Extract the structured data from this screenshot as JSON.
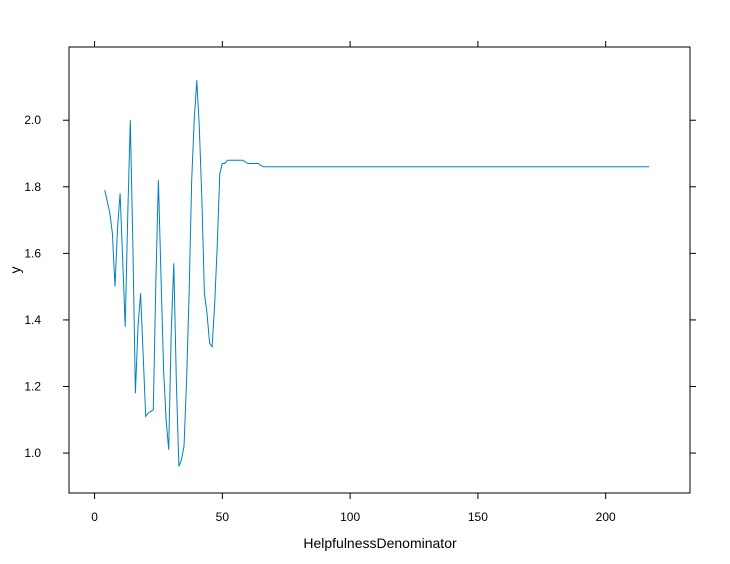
{
  "chart_data": {
    "type": "line",
    "title": "",
    "xlabel": "HelpfulnessDenominator",
    "ylabel": "y",
    "xlim": [
      -10,
      233
    ],
    "ylim": [
      0.88,
      2.22
    ],
    "x_ticks": [
      0,
      50,
      100,
      150,
      200
    ],
    "y_ticks": [
      1.0,
      1.2,
      1.4,
      1.6,
      1.8,
      2.0
    ],
    "x_tick_labels": [
      "0",
      "50",
      "100",
      "150",
      "200"
    ],
    "y_tick_labels": [
      "1.0",
      "1.2",
      "1.4",
      "1.6",
      "1.8",
      "2.0"
    ],
    "grid": false,
    "line_color": "#0080c0",
    "series": [
      {
        "x": [
          4,
          6,
          7,
          8,
          9,
          10,
          11,
          12,
          13,
          14,
          15,
          16,
          17,
          18,
          19,
          20,
          21,
          23,
          24,
          25,
          26,
          27,
          28,
          29,
          30,
          31,
          32,
          33,
          34,
          35,
          36,
          37,
          38,
          39,
          40,
          41,
          42,
          43,
          44,
          45,
          46,
          47,
          48,
          49,
          50,
          51,
          52,
          53,
          54,
          55,
          56,
          58,
          60,
          61,
          62,
          63,
          64,
          66,
          67,
          68,
          70,
          217
        ],
        "y": [
          1.79,
          1.72,
          1.66,
          1.5,
          1.68,
          1.78,
          1.58,
          1.38,
          1.72,
          2.0,
          1.62,
          1.18,
          1.38,
          1.48,
          1.3,
          1.11,
          1.12,
          1.13,
          1.52,
          1.82,
          1.53,
          1.25,
          1.1,
          1.01,
          1.36,
          1.57,
          1.22,
          0.96,
          0.98,
          1.02,
          1.22,
          1.48,
          1.82,
          2.0,
          2.12,
          1.98,
          1.76,
          1.48,
          1.42,
          1.33,
          1.32,
          1.45,
          1.62,
          1.84,
          1.87,
          1.87,
          1.88,
          1.88,
          1.88,
          1.88,
          1.88,
          1.88,
          1.87,
          1.87,
          1.87,
          1.87,
          1.87,
          1.86,
          1.86,
          1.86,
          1.86,
          1.86
        ]
      }
    ]
  }
}
